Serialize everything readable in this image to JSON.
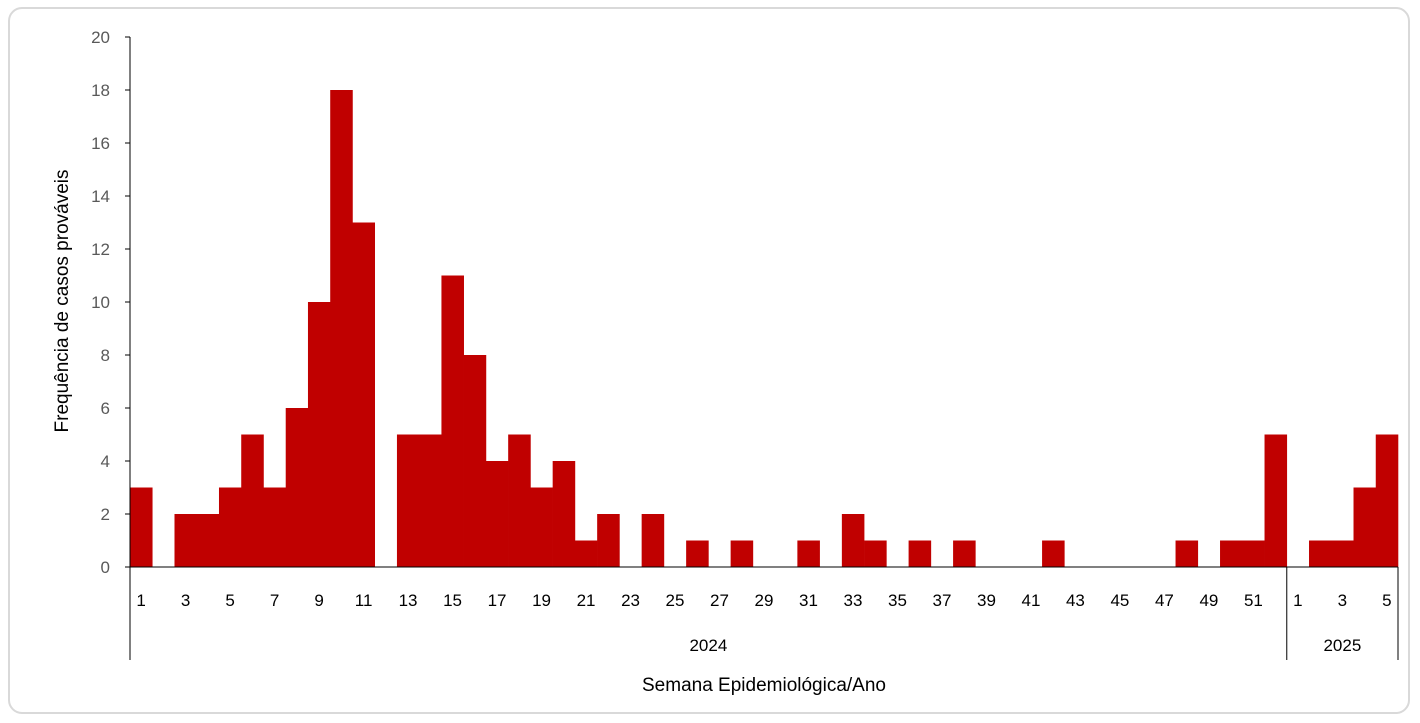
{
  "chart_data": {
    "type": "bar",
    "title": "",
    "ylabel": "Frequência de casos prováveis",
    "xlabel": "Semana Epidemiológica/Ano",
    "ylim": [
      0,
      20
    ],
    "yticks": [
      0,
      2,
      4,
      6,
      8,
      10,
      12,
      14,
      16,
      18,
      20
    ],
    "grid": false,
    "legend": "none",
    "bar_color": "#c00000",
    "groups": [
      {
        "label": "2024",
        "weeks": [
          1,
          2,
          3,
          4,
          5,
          6,
          7,
          8,
          9,
          10,
          11,
          12,
          13,
          14,
          15,
          16,
          17,
          18,
          19,
          20,
          21,
          22,
          23,
          24,
          25,
          26,
          27,
          28,
          29,
          30,
          31,
          32,
          33,
          34,
          35,
          36,
          37,
          38,
          39,
          40,
          41,
          42,
          43,
          44,
          45,
          46,
          47,
          48,
          49,
          50,
          51,
          52
        ],
        "tick_labels": [
          "1",
          "",
          "3",
          "",
          "5",
          "",
          "7",
          "",
          "9",
          "",
          "11",
          "",
          "13",
          "",
          "15",
          "",
          "17",
          "",
          "19",
          "",
          "21",
          "",
          "23",
          "",
          "25",
          "",
          "27",
          "",
          "29",
          "",
          "31",
          "",
          "33",
          "",
          "35",
          "",
          "37",
          "",
          "39",
          "",
          "41",
          "",
          "43",
          "",
          "45",
          "",
          "47",
          "",
          "49",
          "",
          "51",
          ""
        ],
        "values": [
          3,
          0,
          2,
          2,
          3,
          5,
          3,
          6,
          10,
          18,
          13,
          0,
          5,
          5,
          11,
          8,
          4,
          5,
          3,
          4,
          1,
          2,
          0,
          2,
          0,
          1,
          0,
          1,
          0,
          0,
          1,
          0,
          2,
          1,
          0,
          1,
          0,
          1,
          0,
          0,
          0,
          1,
          0,
          0,
          0,
          0,
          0,
          1,
          0,
          1,
          1,
          5
        ]
      },
      {
        "label": "2025",
        "weeks": [
          1,
          2,
          3,
          4,
          5
        ],
        "tick_labels": [
          "1",
          "",
          "3",
          "",
          "5"
        ],
        "values": [
          0,
          1,
          1,
          3,
          5
        ]
      }
    ]
  }
}
